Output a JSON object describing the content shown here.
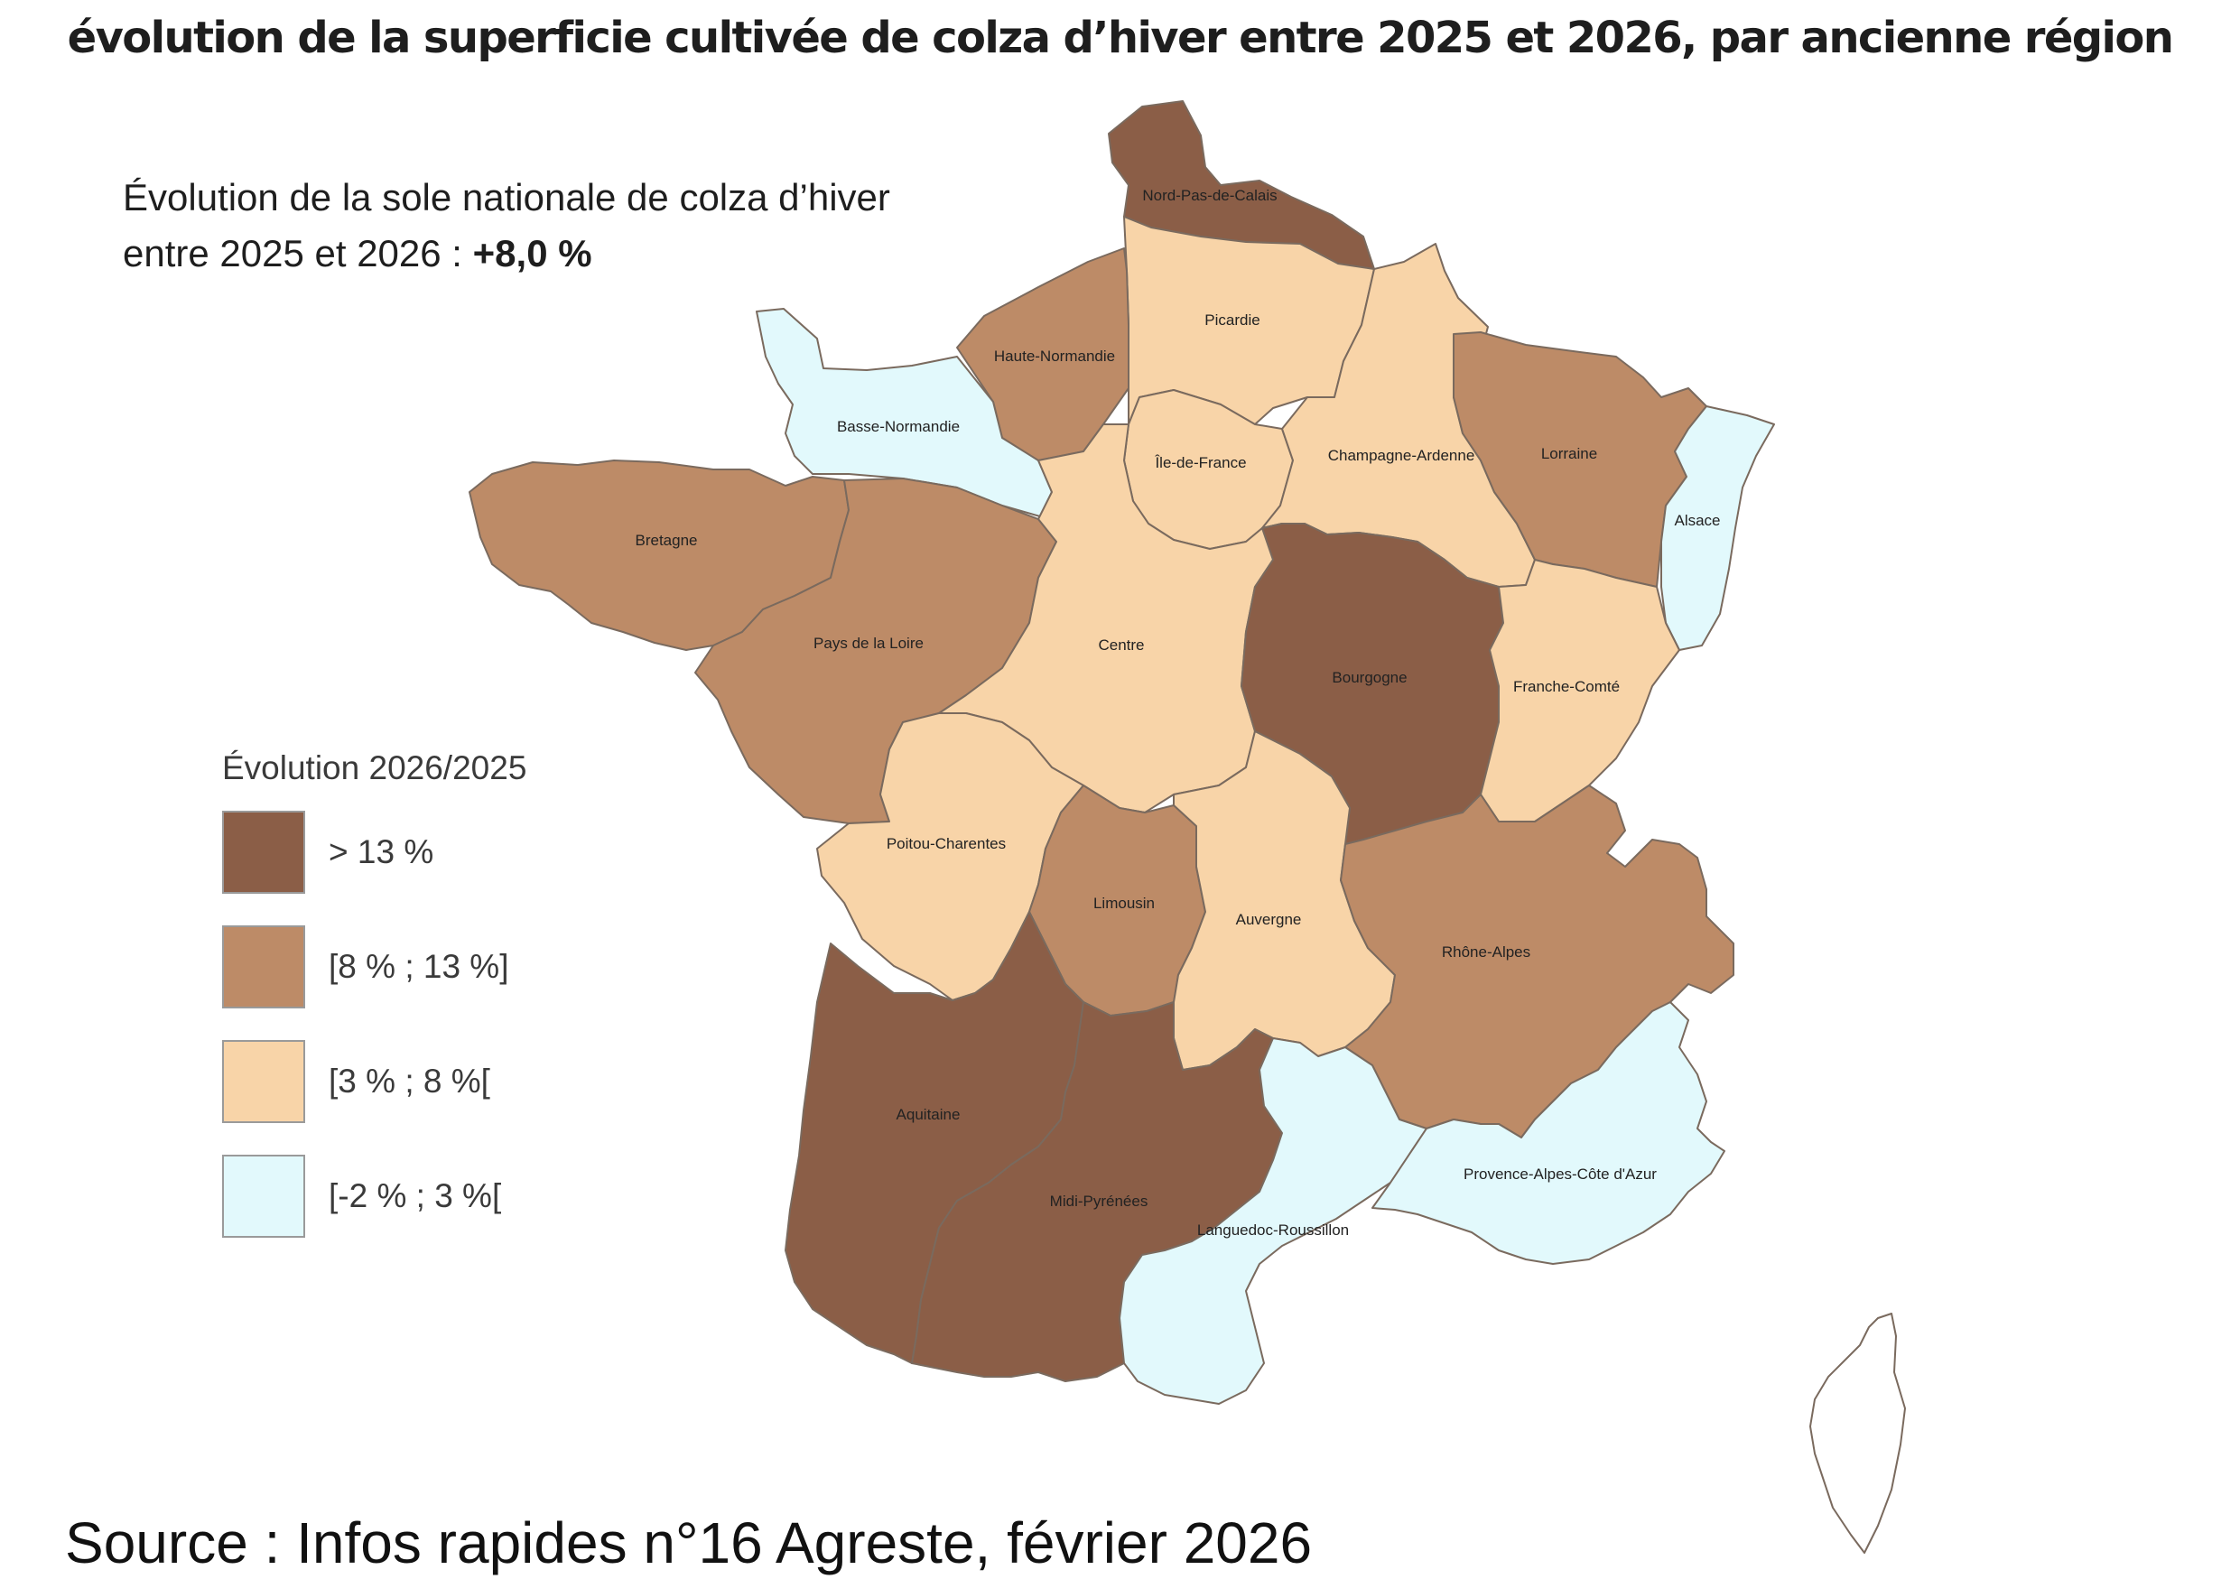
{
  "title": "évolution de la superficie cultivée de colza d’hiver entre 2025 et 2026, par ancienne région",
  "national": {
    "line1": "Évolution de la sole nationale de colza d’hiver",
    "line2": "entre 2025 et 2026 : ",
    "value": "+8,0 %"
  },
  "legend": {
    "title": "Évolution 2026/2025",
    "classes": [
      {
        "label": "> 13 %",
        "color": "#8b5e47"
      },
      {
        "label": "[8 % ; 13 %]",
        "color": "#bd8b67"
      },
      {
        "label": "[3 % ; 8 %[",
        "color": "#f8d4a8"
      },
      {
        "label": "[-2 % ; 3 %[",
        "color": "#e2f9fc"
      }
    ]
  },
  "regions": {
    "nord_pas_de_calais": {
      "name": "Nord-Pas-de-Calais",
      "class": 0
    },
    "picardie": {
      "name": "Picardie",
      "class": 2
    },
    "haute_normandie": {
      "name": "Haute-Normandie",
      "class": 1
    },
    "basse_normandie": {
      "name": "Basse-Normandie",
      "class": 3
    },
    "ile_de_france": {
      "name": "Île-de-France",
      "class": 2
    },
    "champagne_ardenne": {
      "name": "Champagne-Ardenne",
      "class": 2
    },
    "lorraine": {
      "name": "Lorraine",
      "class": 1
    },
    "alsace": {
      "name": "Alsace",
      "class": 3
    },
    "bretagne": {
      "name": "Bretagne",
      "class": 1
    },
    "pays_de_la_loire": {
      "name": "Pays de la Loire",
      "class": 1
    },
    "centre": {
      "name": "Centre",
      "class": 2
    },
    "bourgogne": {
      "name": "Bourgogne",
      "class": 0
    },
    "franche_comte": {
      "name": "Franche-Comté",
      "class": 2
    },
    "poitou_charentes": {
      "name": "Poitou-Charentes",
      "class": 2
    },
    "limousin": {
      "name": "Limousin",
      "class": 1
    },
    "auvergne": {
      "name": "Auvergne",
      "class": 2
    },
    "rhone_alpes": {
      "name": "Rhône-Alpes",
      "class": 1
    },
    "aquitaine": {
      "name": "Aquitaine",
      "class": 0
    },
    "midi_pyrenees": {
      "name": "Midi-Pyrénées",
      "class": 0
    },
    "languedoc_roussillon": {
      "name": "Languedoc-Roussillon",
      "class": 3
    },
    "provence_alpes_cote_d_azur": {
      "name": "Provence-Alpes-Côte d'Azur",
      "class": 3
    },
    "corse": {
      "name": "",
      "class": null
    }
  },
  "source": "Source : Infos rapides n°16 Agreste, février 2026"
}
